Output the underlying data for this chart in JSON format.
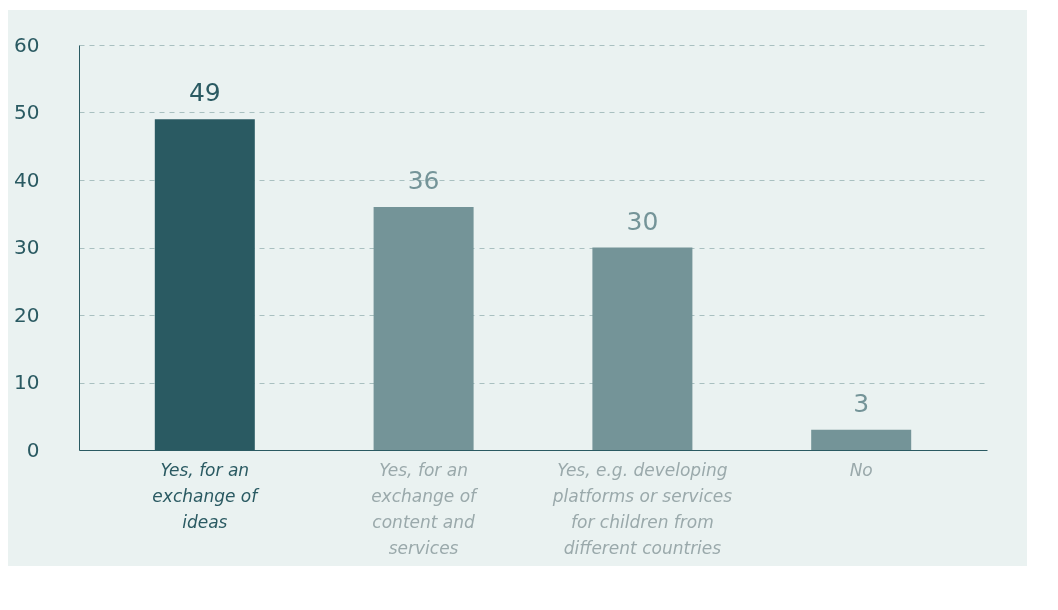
{
  "chart_data": {
    "type": "bar",
    "categories": [
      "Yes, for an exchange of ideas",
      "Yes, for an exchange of content and services",
      "Yes, e.g. developing platforms or services for children from different countries",
      "No"
    ],
    "values": [
      49,
      36,
      30,
      3
    ],
    "colors": [
      "#2a5a62",
      "#749498",
      "#749498",
      "#749498"
    ],
    "ylim": [
      0,
      60
    ],
    "yticks": [
      0,
      10,
      20,
      30,
      40,
      50,
      60
    ],
    "grid": "y",
    "line_style": "dashed",
    "data_labels": true
  }
}
